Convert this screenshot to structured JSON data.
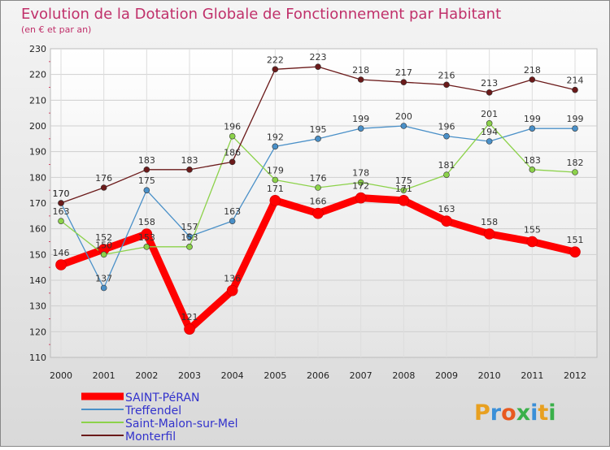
{
  "chart_data": {
    "type": "line",
    "title": "Evolution de la Dotation Globale de Fonctionnement par Habitant",
    "subtitle": "(en € et par an)",
    "xlabel": "",
    "ylabel": "",
    "x": [
      "2000",
      "2001",
      "2002",
      "2003",
      "2004",
      "2005",
      "2006",
      "2007",
      "2008",
      "2009",
      "2010",
      "2011",
      "2012"
    ],
    "ylim": [
      110,
      230
    ],
    "yticks": [
      110,
      120,
      130,
      140,
      150,
      160,
      170,
      180,
      190,
      200,
      210,
      220,
      230
    ],
    "grid": true,
    "legend_position": "bottom-left",
    "series": [
      {
        "name": "SAINT-PéRAN",
        "color": "#ff0000",
        "values": [
          146,
          152,
          158,
          121,
          136,
          171,
          166,
          172,
          171,
          163,
          158,
          155,
          151
        ]
      },
      {
        "name": "Treffendel",
        "color": "#4a90c8",
        "values": [
          170,
          137,
          175,
          157,
          163,
          192,
          195,
          199,
          200,
          196,
          194,
          199,
          199
        ]
      },
      {
        "name": "Saint-Malon-sur-Mel",
        "color": "#8cd24a",
        "values": [
          163,
          150,
          153,
          153,
          196,
          179,
          176,
          178,
          175,
          181,
          201,
          183,
          182
        ]
      },
      {
        "name": "Monterfil",
        "color": "#6b1a1a",
        "values": [
          170,
          176,
          183,
          183,
          186,
          222,
          223,
          218,
          217,
          216,
          213,
          218,
          214
        ]
      }
    ]
  },
  "logo": {
    "text": "Proxiti"
  },
  "colors": {
    "title": "#c0306a",
    "legend_text": "#3333cc",
    "axis_text": "#222222"
  }
}
